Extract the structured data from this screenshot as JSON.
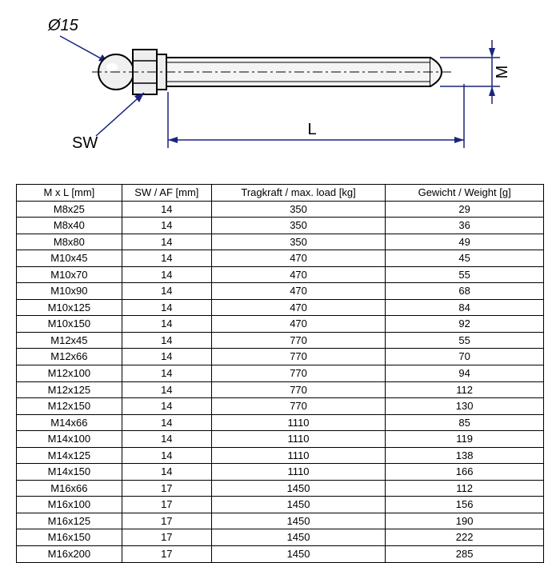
{
  "drawing": {
    "labels": {
      "diameter": "Ø15",
      "sw": "SW",
      "L": "L",
      "M": "M"
    },
    "colors": {
      "line": "#000000",
      "fill": "#f5f5f5",
      "dim": "#1a237e",
      "bg": "#ffffff"
    }
  },
  "table": {
    "columns": [
      "M x L [mm]",
      "SW / AF [mm]",
      "Tragkraft / max. load [kg]",
      "Gewicht / Weight [g]"
    ],
    "col_widths_pct": [
      20,
      17,
      33,
      30
    ],
    "rows": [
      [
        "M8x25",
        "14",
        "350",
        "29"
      ],
      [
        "M8x40",
        "14",
        "350",
        "36"
      ],
      [
        "M8x80",
        "14",
        "350",
        "49"
      ],
      [
        "M10x45",
        "14",
        "470",
        "45"
      ],
      [
        "M10x70",
        "14",
        "470",
        "55"
      ],
      [
        "M10x90",
        "14",
        "470",
        "68"
      ],
      [
        "M10x125",
        "14",
        "470",
        "84"
      ],
      [
        "M10x150",
        "14",
        "470",
        "92"
      ],
      [
        "M12x45",
        "14",
        "770",
        "55"
      ],
      [
        "M12x66",
        "14",
        "770",
        "70"
      ],
      [
        "M12x100",
        "14",
        "770",
        "94"
      ],
      [
        "M12x125",
        "14",
        "770",
        "112"
      ],
      [
        "M12x150",
        "14",
        "770",
        "130"
      ],
      [
        "M14x66",
        "14",
        "1110",
        "85"
      ],
      [
        "M14x100",
        "14",
        "1110",
        "119"
      ],
      [
        "M14x125",
        "14",
        "1110",
        "138"
      ],
      [
        "M14x150",
        "14",
        "1110",
        "166"
      ],
      [
        "M16x66",
        "17",
        "1450",
        "112"
      ],
      [
        "M16x100",
        "17",
        "1450",
        "156"
      ],
      [
        "M16x125",
        "17",
        "1450",
        "190"
      ],
      [
        "M16x150",
        "17",
        "1450",
        "222"
      ],
      [
        "M16x200",
        "17",
        "1450",
        "285"
      ]
    ]
  }
}
